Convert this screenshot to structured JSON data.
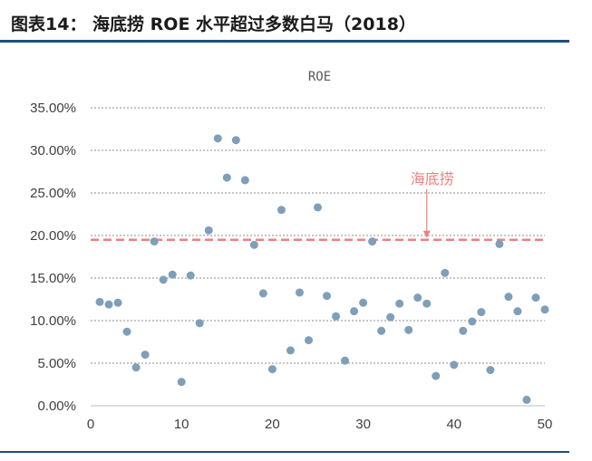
{
  "figure": {
    "title": "图表14：  海底捞 ROE 水平超过多数白马（2018）"
  },
  "chart_data": {
    "type": "scatter",
    "title": "ROE",
    "xlabel": "",
    "ylabel": "",
    "xlim": [
      0,
      50
    ],
    "ylim": [
      0,
      0.35
    ],
    "x_ticks": [
      "0",
      "10",
      "20",
      "30",
      "40",
      "50"
    ],
    "y_ticks": [
      "0.00%",
      "5.00%",
      "10.00%",
      "15.00%",
      "20.00%",
      "25.00%",
      "30.00%",
      "35.00%"
    ],
    "grid": "horizontal dashed",
    "legend": "none",
    "series": [
      {
        "color": "#7f9fb9",
        "points": [
          [
            1,
            0.122
          ],
          [
            2,
            0.119
          ],
          [
            3,
            0.121
          ],
          [
            4,
            0.087
          ],
          [
            5,
            0.045
          ],
          [
            6,
            0.06
          ],
          [
            7,
            0.193
          ],
          [
            8,
            0.148
          ],
          [
            9,
            0.154
          ],
          [
            10,
            0.028
          ],
          [
            11,
            0.153
          ],
          [
            12,
            0.097
          ],
          [
            13,
            0.206
          ],
          [
            14,
            0.314
          ],
          [
            15,
            0.268
          ],
          [
            16,
            0.312
          ],
          [
            17,
            0.265
          ],
          [
            18,
            0.189
          ],
          [
            19,
            0.132
          ],
          [
            20,
            0.043
          ],
          [
            21,
            0.23
          ],
          [
            22,
            0.065
          ],
          [
            23,
            0.133
          ],
          [
            24,
            0.077
          ],
          [
            25,
            0.233
          ],
          [
            26,
            0.129
          ],
          [
            27,
            0.105
          ],
          [
            28,
            0.053
          ],
          [
            29,
            0.111
          ],
          [
            30,
            0.121
          ],
          [
            31,
            0.193
          ],
          [
            32,
            0.088
          ],
          [
            33,
            0.104
          ],
          [
            34,
            0.12
          ],
          [
            35,
            0.089
          ],
          [
            36,
            0.127
          ],
          [
            37,
            0.12
          ],
          [
            38,
            0.035
          ],
          [
            39,
            0.156
          ],
          [
            40,
            0.048
          ],
          [
            41,
            0.088
          ],
          [
            42,
            0.099
          ],
          [
            43,
            0.11
          ],
          [
            44,
            0.042
          ],
          [
            45,
            0.19
          ],
          [
            46,
            0.128
          ],
          [
            47,
            0.111
          ],
          [
            48,
            0.007
          ],
          [
            49,
            0.127
          ],
          [
            50,
            0.113
          ]
        ]
      }
    ],
    "reference_line": {
      "y": 0.195,
      "color": "#f08080",
      "style": "dashed"
    },
    "annotation": {
      "text": "海底捞",
      "arrow_x": 37,
      "color": "#f08080"
    }
  }
}
